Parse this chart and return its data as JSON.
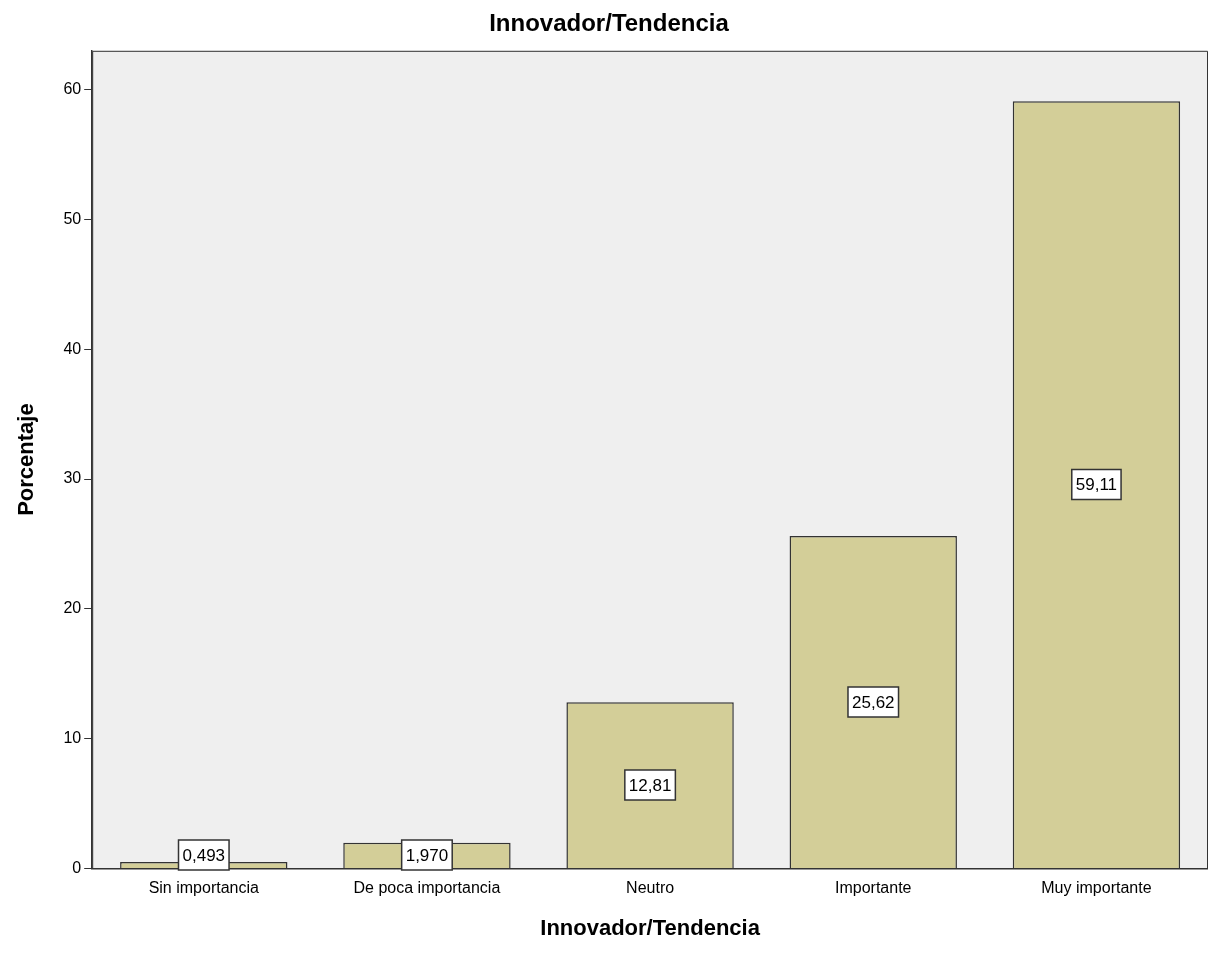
{
  "chart_data": {
    "type": "bar",
    "title": "Innovador/Tendencia",
    "xlabel": "Innovador/Tendencia",
    "ylabel": "Porcentaje",
    "categories": [
      "Sin importancia",
      "De poca importancia",
      "Neutro",
      "Importante",
      "Muy importante"
    ],
    "values": [
      0.493,
      1.97,
      12.81,
      25.62,
      59.11
    ],
    "value_labels": [
      "0,493",
      "1,970",
      "12,81",
      "25,62",
      "59,11"
    ],
    "color": "#d3ce98",
    "ylim": [
      0,
      63
    ],
    "yticks": [
      0,
      10,
      20,
      30,
      40,
      50,
      60
    ],
    "grid": false,
    "legend": false
  }
}
